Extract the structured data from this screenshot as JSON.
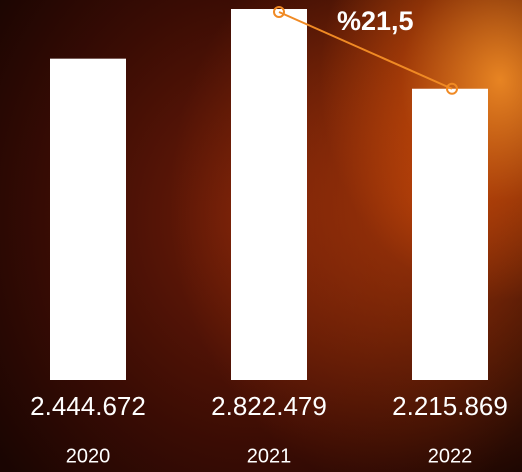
{
  "chart_data": {
    "type": "bar",
    "categories": [
      "2020",
      "2021",
      "2022"
    ],
    "values": [
      2444672,
      2822479,
      2215869
    ],
    "value_labels": [
      "2.444.672",
      "2.822.479",
      "2.215.869"
    ],
    "color": "#ffffff",
    "annotation": {
      "text": "%21,5",
      "color": "#f08a24"
    }
  }
}
